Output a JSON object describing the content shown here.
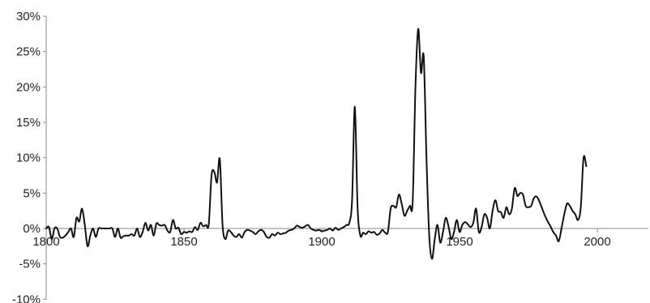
{
  "chart_data": {
    "type": "line",
    "title": "",
    "xlabel": "",
    "ylabel": "",
    "xlim": [
      1800,
      2011
    ],
    "ylim": [
      -10,
      30
    ],
    "x_ticks": [
      1800,
      1850,
      1900,
      1950,
      2000
    ],
    "x_tick_labels": [
      "1800",
      "1850",
      "1900",
      "1950",
      "2000"
    ],
    "y_ticks": [
      -10,
      -5,
      0,
      5,
      10,
      15,
      20,
      25,
      30
    ],
    "y_tick_labels": [
      "-10%",
      "-5%",
      "0%",
      "5%",
      "10%",
      "15%",
      "20%",
      "25%",
      "30%"
    ],
    "grid": false,
    "legend": "none",
    "series": [
      {
        "color": "#111111",
        "points": [
          [
            1800,
            0
          ],
          [
            1801,
            0.2
          ],
          [
            1802,
            -1.5
          ],
          [
            1803,
            0
          ],
          [
            1804,
            0
          ],
          [
            1805,
            -1.2
          ],
          [
            1806,
            -1.3
          ],
          [
            1807,
            -1.0
          ],
          [
            1808,
            -0.5
          ],
          [
            1809,
            0
          ],
          [
            1810,
            -1.2
          ],
          [
            1811,
            1.5
          ],
          [
            1812,
            1.0
          ],
          [
            1813,
            2.8
          ],
          [
            1814,
            0.5
          ],
          [
            1815,
            -2.5
          ],
          [
            1816,
            -1.0
          ],
          [
            1817,
            0
          ],
          [
            1818,
            -1.2
          ],
          [
            1819,
            0
          ],
          [
            1820,
            0
          ],
          [
            1821,
            0
          ],
          [
            1822,
            0
          ],
          [
            1823,
            0
          ],
          [
            1824,
            0
          ],
          [
            1825,
            -1.2
          ],
          [
            1826,
            0
          ],
          [
            1827,
            -1.3
          ],
          [
            1828,
            -1.1
          ],
          [
            1829,
            -1.0
          ],
          [
            1830,
            -1.0
          ],
          [
            1831,
            -0.8
          ],
          [
            1832,
            -1.0
          ],
          [
            1833,
            0
          ],
          [
            1834,
            -1.2
          ],
          [
            1835,
            -0.5
          ],
          [
            1836,
            0.8
          ],
          [
            1837,
            -0.3
          ],
          [
            1838,
            0.5
          ],
          [
            1839,
            -1.0
          ],
          [
            1840,
            0.7
          ],
          [
            1841,
            0.5
          ],
          [
            1842,
            0.4
          ],
          [
            1843,
            0.5
          ],
          [
            1844,
            -0.3
          ],
          [
            1845,
            -0.5
          ],
          [
            1846,
            1.2
          ],
          [
            1847,
            0
          ],
          [
            1848,
            0.1
          ],
          [
            1849,
            -0.8
          ],
          [
            1850,
            -0.5
          ],
          [
            1851,
            -0.6
          ],
          [
            1852,
            -0.4
          ],
          [
            1853,
            -0.5
          ],
          [
            1854,
            0.2
          ],
          [
            1855,
            -0.2
          ],
          [
            1856,
            0.8
          ],
          [
            1857,
            0.3
          ],
          [
            1858,
            0.5
          ],
          [
            1859,
            0.6
          ],
          [
            1860,
            7.5
          ],
          [
            1861,
            8.0
          ],
          [
            1862,
            6.5
          ],
          [
            1863,
            9.8
          ],
          [
            1864,
            0.5
          ],
          [
            1865,
            -1.5
          ],
          [
            1866,
            -0.3
          ],
          [
            1867,
            -0.5
          ],
          [
            1868,
            -1.0
          ],
          [
            1869,
            -1.2
          ],
          [
            1870,
            -0.8
          ],
          [
            1871,
            -1.3
          ],
          [
            1872,
            -0.5
          ],
          [
            1873,
            -0.2
          ],
          [
            1874,
            -0.3
          ],
          [
            1875,
            -0.5
          ],
          [
            1876,
            -0.8
          ],
          [
            1877,
            -0.4
          ],
          [
            1878,
            -0.2
          ],
          [
            1879,
            -0.5
          ],
          [
            1880,
            -1.2
          ],
          [
            1881,
            -1.3
          ],
          [
            1882,
            -0.8
          ],
          [
            1883,
            -1.0
          ],
          [
            1884,
            -0.6
          ],
          [
            1885,
            -0.8
          ],
          [
            1886,
            -0.7
          ],
          [
            1887,
            -0.6
          ],
          [
            1888,
            -0.3
          ],
          [
            1889,
            -0.2
          ],
          [
            1890,
            0
          ],
          [
            1891,
            0.4
          ],
          [
            1892,
            0.2
          ],
          [
            1893,
            0.1
          ],
          [
            1894,
            0.3
          ],
          [
            1895,
            0.5
          ],
          [
            1896,
            0
          ],
          [
            1897,
            -0.2
          ],
          [
            1898,
            -0.3
          ],
          [
            1899,
            -0.2
          ],
          [
            1900,
            -0.4
          ],
          [
            1901,
            -0.3
          ],
          [
            1902,
            -0.2
          ],
          [
            1903,
            0
          ],
          [
            1904,
            -0.3
          ],
          [
            1905,
            0.1
          ],
          [
            1906,
            -0.2
          ],
          [
            1907,
            0
          ],
          [
            1908,
            0.2
          ],
          [
            1909,
            0.5
          ],
          [
            1910,
            0.8
          ],
          [
            1911,
            4.0
          ],
          [
            1912,
            17.2
          ],
          [
            1913,
            3.0
          ],
          [
            1914,
            -1.0
          ],
          [
            1915,
            -0.6
          ],
          [
            1916,
            -0.8
          ],
          [
            1917,
            -0.4
          ],
          [
            1918,
            -0.6
          ],
          [
            1919,
            -0.5
          ],
          [
            1920,
            -0.9
          ],
          [
            1921,
            -0.7
          ],
          [
            1922,
            -0.2
          ],
          [
            1923,
            -0.6
          ],
          [
            1924,
            -0.5
          ],
          [
            1925,
            2.8
          ],
          [
            1926,
            3.2
          ],
          [
            1927,
            3.0
          ],
          [
            1928,
            4.8
          ],
          [
            1929,
            3.5
          ],
          [
            1930,
            1.8
          ],
          [
            1931,
            2.5
          ],
          [
            1932,
            3.2
          ],
          [
            1933,
            3.8
          ],
          [
            1934,
            20.0
          ],
          [
            1935,
            28.2
          ],
          [
            1936,
            22.0
          ],
          [
            1937,
            24.3
          ],
          [
            1938,
            10.0
          ],
          [
            1939,
            -1.0
          ],
          [
            1940,
            -4.3
          ],
          [
            1941,
            -1.5
          ],
          [
            1942,
            0.5
          ],
          [
            1943,
            -2.0
          ],
          [
            1944,
            -0.5
          ],
          [
            1945,
            1.5
          ],
          [
            1946,
            0.3
          ],
          [
            1947,
            -1.5
          ],
          [
            1948,
            -0.5
          ],
          [
            1949,
            1.2
          ],
          [
            1950,
            -0.5
          ],
          [
            1951,
            0.5
          ],
          [
            1952,
            0.9
          ],
          [
            1953,
            0.6
          ],
          [
            1954,
            0.2
          ],
          [
            1955,
            0.8
          ],
          [
            1956,
            2.8
          ],
          [
            1957,
            -0.5
          ],
          [
            1958,
            0.2
          ],
          [
            1959,
            2.0
          ],
          [
            1960,
            1.5
          ],
          [
            1961,
            0
          ],
          [
            1962,
            2.5
          ],
          [
            1963,
            4.0
          ],
          [
            1964,
            2.5
          ],
          [
            1965,
            2.3
          ],
          [
            1966,
            1.5
          ],
          [
            1967,
            3.0
          ],
          [
            1968,
            2.0
          ],
          [
            1969,
            2.8
          ],
          [
            1970,
            5.7
          ],
          [
            1971,
            4.6
          ],
          [
            1972,
            5.0
          ],
          [
            1973,
            4.8
          ],
          [
            1974,
            3.2
          ],
          [
            1975,
            3.0
          ],
          [
            1976,
            3.2
          ],
          [
            1977,
            4.3
          ],
          [
            1978,
            4.5
          ],
          [
            1979,
            3.8
          ],
          [
            1980,
            2.8
          ],
          [
            1981,
            1.8
          ],
          [
            1982,
            1.0
          ],
          [
            1983,
            0.3
          ],
          [
            1984,
            -0.5
          ],
          [
            1985,
            -1.0
          ],
          [
            1986,
            -1.8
          ],
          [
            1987,
            0
          ],
          [
            1988,
            2.0
          ],
          [
            1989,
            3.5
          ],
          [
            1990,
            3.2
          ],
          [
            1991,
            2.5
          ],
          [
            1992,
            2.0
          ],
          [
            1993,
            1.2
          ],
          [
            1994,
            3.0
          ],
          [
            1995,
            10.0
          ],
          [
            1996,
            8.8
          ]
        ]
      }
    ]
  }
}
